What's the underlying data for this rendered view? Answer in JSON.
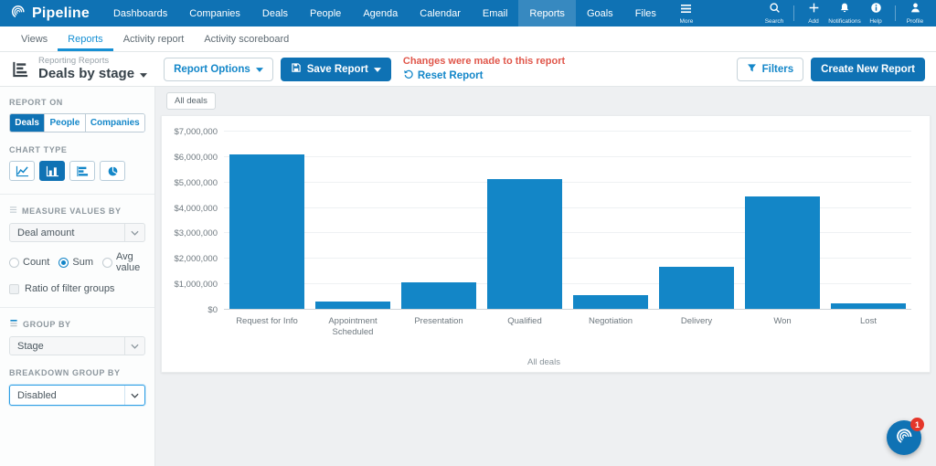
{
  "topnav": {
    "brand": "Pipeline",
    "items": [
      "Dashboards",
      "Companies",
      "Deals",
      "People",
      "Agenda",
      "Calendar",
      "Email",
      "Reports",
      "Goals",
      "Files"
    ],
    "active_item": "Reports",
    "more_label": "More",
    "more_icon": "hamburger-icon",
    "right_items": [
      {
        "label": "Search",
        "icon": "search-icon"
      },
      {
        "label": "Add",
        "icon": "add-icon"
      },
      {
        "label": "Notifications",
        "icon": "notifications-icon"
      },
      {
        "label": "Help",
        "icon": "help-icon"
      },
      {
        "label": "Profile",
        "icon": "profile-icon"
      }
    ]
  },
  "subnav": {
    "items": [
      "Views",
      "Reports",
      "Activity report",
      "Activity scoreboard"
    ],
    "active": "Reports"
  },
  "report_header": {
    "icon": "report-chart-icon",
    "eyebrow": "Reporting Reports",
    "title": "Deals by stage",
    "report_options_label": "Report Options",
    "save_report_label": "Save Report",
    "changes_message": "Changes were made to this report",
    "reset_label": "Reset Report",
    "filters_label": "Filters",
    "create_report_label": "Create New Report"
  },
  "sidebar": {
    "report_on": {
      "label": "REPORT ON",
      "options": [
        "Deals",
        "People",
        "Companies"
      ],
      "active": "Deals"
    },
    "chart_type": {
      "label": "CHART TYPE",
      "options": [
        "line-chart-icon",
        "bar-chart-icon",
        "horizontal-bar-chart-icon",
        "pie-chart-icon"
      ],
      "active": "bar-chart-icon"
    },
    "measure": {
      "label": "MEASURE VALUES BY",
      "dropdown_value": "Deal amount",
      "radios": [
        "Count",
        "Sum",
        "Avg value"
      ],
      "selected_radio": "Sum",
      "checkbox_label": "Ratio of filter groups",
      "checkbox_checked": false
    },
    "group_by": {
      "label": "GROUP BY",
      "dropdown_value": "Stage"
    },
    "breakdown": {
      "label": "BREAKDOWN GROUP BY",
      "dropdown_value": "Disabled"
    }
  },
  "main": {
    "filter_chip": "All deals"
  },
  "chart_data": {
    "type": "bar",
    "categories": [
      "Request for Info",
      "Appointment Scheduled",
      "Presentation",
      "Qualified",
      "Negotiation",
      "Delivery",
      "Won",
      "Lost"
    ],
    "values": [
      6050000,
      280000,
      1050000,
      5100000,
      550000,
      1650000,
      4400000,
      220000
    ],
    "title": "",
    "xlabel": "",
    "ylabel": "",
    "ylim": [
      0,
      7000000
    ],
    "yticks": [
      7000000,
      6000000,
      5000000,
      4000000,
      3000000,
      2000000,
      1000000,
      0
    ],
    "ytick_labels": [
      "$7,000,000",
      "$6,000,000",
      "$5,000,000",
      "$4,000,000",
      "$3,000,000",
      "$2,000,000",
      "$1,000,000",
      "$0"
    ],
    "legend": "All deals",
    "legend_position": "bottom",
    "grid": true,
    "bar_color": "#1386c7"
  },
  "chat_widget": {
    "badge": "1"
  }
}
